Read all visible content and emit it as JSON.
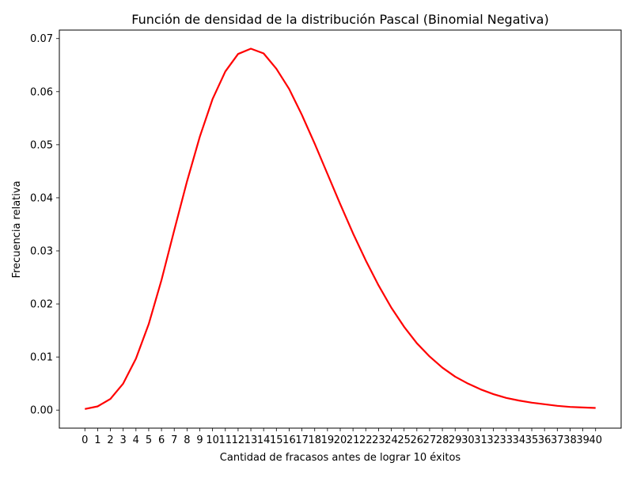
{
  "chart_data": {
    "type": "line",
    "title": "Función de densidad de la distribución Pascal (Binomial Negativa)",
    "xlabel": "Cantidad de fracasos antes de lograr 10 éxitos",
    "ylabel": "Frecuencia relativa",
    "grid": false,
    "xlim": [
      -2,
      42
    ],
    "ylim": [
      -0.0034,
      0.0716
    ],
    "x_ticks": [
      0,
      1,
      2,
      3,
      4,
      5,
      6,
      7,
      8,
      9,
      10,
      11,
      12,
      13,
      14,
      15,
      16,
      17,
      18,
      19,
      20,
      21,
      22,
      23,
      24,
      25,
      26,
      27,
      28,
      29,
      30,
      31,
      32,
      33,
      34,
      35,
      36,
      37,
      38,
      39,
      40
    ],
    "x_tick_labels": [
      "0",
      "1",
      "2",
      "3",
      "4",
      "5",
      "6",
      "7",
      "8",
      "9",
      "10",
      "11",
      "12",
      "13",
      "14",
      "15",
      "16",
      "17",
      "18",
      "19",
      "20",
      "21",
      "22",
      "23",
      "24",
      "25",
      "26",
      "27",
      "28",
      "29",
      "30",
      "31",
      "32",
      "33",
      "34",
      "35",
      "36",
      "37",
      "38",
      "39",
      "40"
    ],
    "y_ticks": [
      0.0,
      0.01,
      0.02,
      0.03,
      0.04,
      0.05,
      0.06,
      0.07
    ],
    "y_tick_labels": [
      "0.00",
      "0.01",
      "0.02",
      "0.03",
      "0.04",
      "0.05",
      "0.06",
      "0.07"
    ],
    "series": [
      {
        "color": "#ff0000",
        "x": [
          0,
          1,
          2,
          3,
          4,
          5,
          6,
          7,
          8,
          9,
          10,
          11,
          12,
          13,
          14,
          15,
          16,
          17,
          18,
          19,
          20,
          21,
          22,
          23,
          24,
          25,
          26,
          27,
          28,
          29,
          30,
          31,
          32,
          33,
          34,
          35,
          36,
          37,
          38,
          39,
          40
        ],
        "values": [
          0.0002,
          0.0007,
          0.0021,
          0.005,
          0.0097,
          0.0162,
          0.0245,
          0.0339,
          0.0431,
          0.0515,
          0.0586,
          0.0638,
          0.0671,
          0.0681,
          0.0672,
          0.0643,
          0.0605,
          0.0556,
          0.0502,
          0.0445,
          0.0388,
          0.0333,
          0.0282,
          0.0235,
          0.0193,
          0.0157,
          0.0126,
          0.0101,
          0.008,
          0.0063,
          0.005,
          0.0039,
          0.003,
          0.0023,
          0.0018,
          0.0014,
          0.0011,
          0.0008,
          0.0006,
          0.0005,
          0.0004
        ]
      }
    ]
  }
}
